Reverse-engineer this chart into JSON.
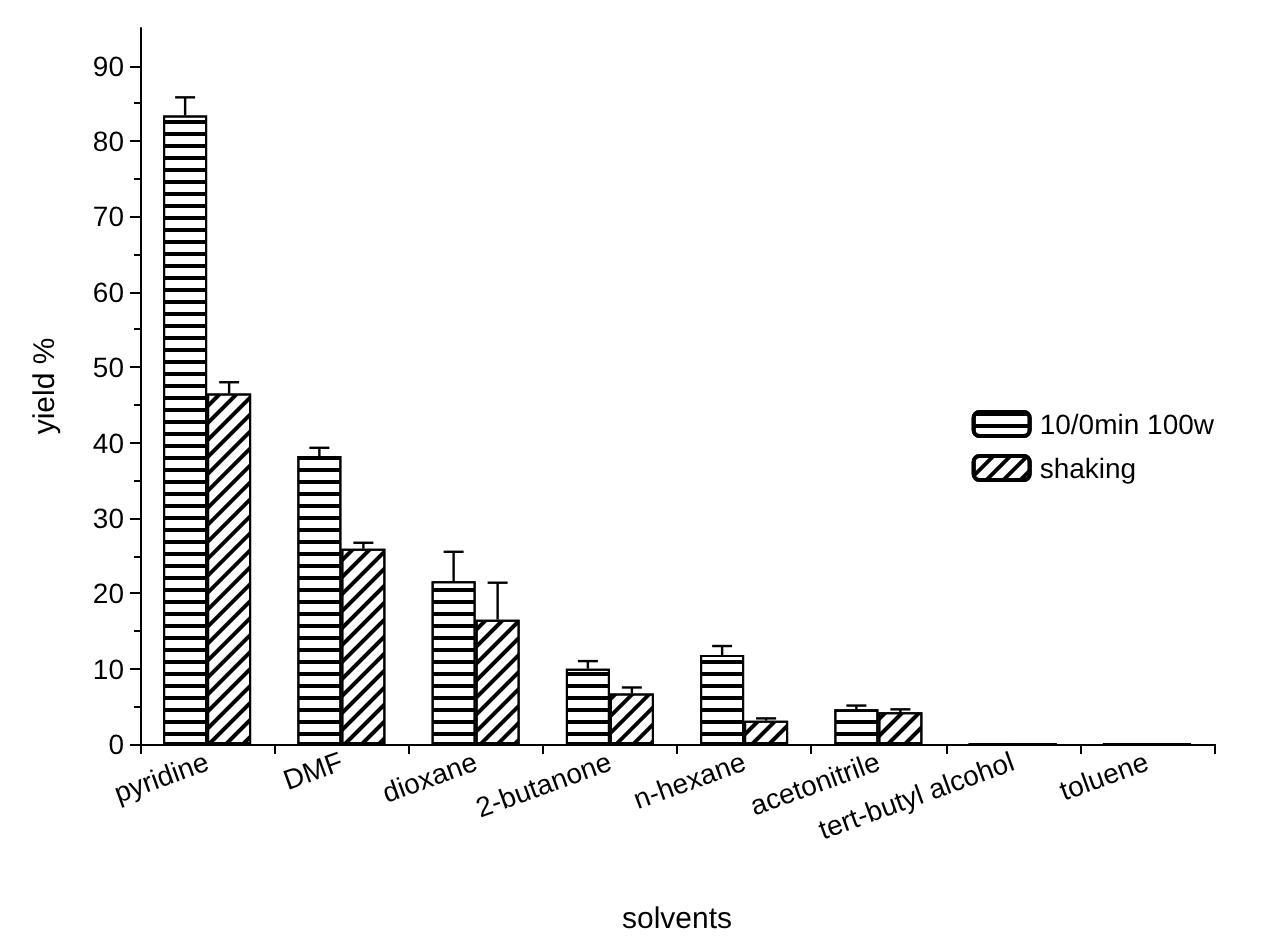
{
  "chart_data": {
    "type": "bar",
    "xlabel": "solvents",
    "ylabel": "yield %",
    "categories": [
      "pyridine",
      "DMF",
      "dioxane",
      "2-butanone",
      "n-hexane",
      "acetonitrile",
      "tert-butyl alcohol",
      "toluene"
    ],
    "series": [
      {
        "name": "10/0min 100w",
        "color": "#000000",
        "values": [
          83.4,
          38.2,
          21.6,
          10.0,
          11.8,
          4.6,
          0,
          0
        ],
        "errors": [
          [
            83.4,
            85.8
          ],
          [
            38.2,
            39.3
          ],
          [
            21.6,
            25.5
          ],
          [
            10.0,
            11.0
          ],
          [
            11.8,
            13.0
          ],
          [
            4.6,
            5.1
          ],
          null,
          null
        ]
      },
      {
        "name": "shaking",
        "color": "#000000",
        "values": [
          46.5,
          25.9,
          16.5,
          6.7,
          3.1,
          4.2,
          0,
          0
        ],
        "errors": [
          [
            46.5,
            48.0
          ],
          [
            25.9,
            26.7
          ],
          [
            16.5,
            21.4
          ],
          [
            6.7,
            7.5
          ],
          [
            3.1,
            3.4
          ],
          [
            4.2,
            4.6
          ],
          null,
          null
        ]
      }
    ],
    "ylim": [
      0,
      95
    ],
    "yticks": [
      0,
      10,
      20,
      30,
      40,
      50,
      60,
      70,
      80,
      90
    ],
    "grid": false,
    "legend": "right"
  }
}
